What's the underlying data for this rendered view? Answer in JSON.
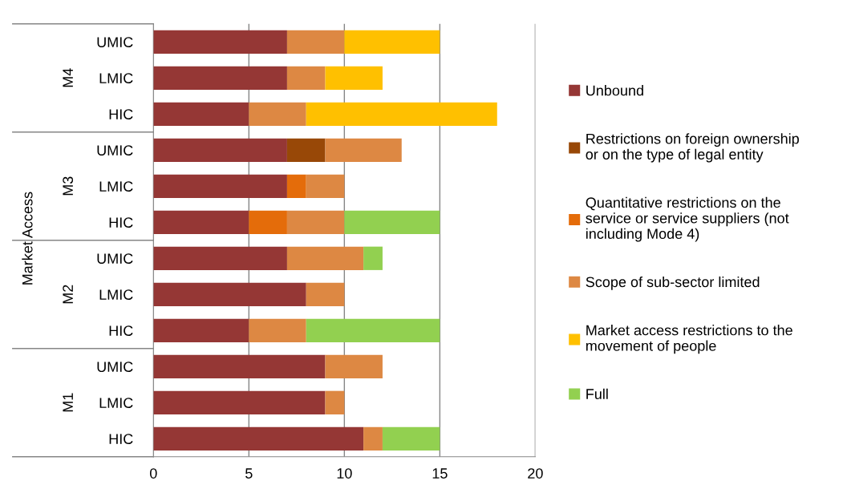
{
  "chart_data": {
    "type": "bar",
    "orientation": "horizontal",
    "stacked": true,
    "ylabel": "Market Access",
    "categories": [
      "UMIC",
      "LMIC",
      "HIC",
      "UMIC",
      "LMIC",
      "HIC",
      "UMIC",
      "LMIC",
      "HIC",
      "UMIC",
      "LMIC",
      "HIC"
    ],
    "annotations": [
      "M4",
      "M3",
      "M2",
      "M1"
    ],
    "series": [
      {
        "name": "Unbound",
        "color": "#953735",
        "values": [
          7,
          7,
          5,
          7,
          7,
          5,
          7,
          8,
          5,
          9,
          9,
          11
        ]
      },
      {
        "name": "Restrictions on foreign ownership or on the type of legal entity",
        "color": "#984807",
        "values": [
          null,
          null,
          null,
          2,
          null,
          null,
          null,
          null,
          null,
          null,
          null,
          null
        ]
      },
      {
        "name": "Quantitative restrictions on the service or service suppliers (not including Mode 4)",
        "color": "#e46c0a",
        "values": [
          null,
          null,
          null,
          null,
          1,
          2,
          null,
          null,
          null,
          null,
          null,
          null
        ]
      },
      {
        "name": "Scope of sub-sector limited",
        "color": "#dd8843",
        "values": [
          3,
          2,
          3,
          4,
          2,
          3,
          4,
          2,
          3,
          3,
          1,
          1
        ]
      },
      {
        "name": "Market access restrictions to the movement of people",
        "color": "#ffc000",
        "values": [
          5,
          3,
          10,
          null,
          null,
          null,
          null,
          null,
          null,
          null,
          null,
          null
        ]
      },
      {
        "name": "Full",
        "color": "#92d050",
        "values": [
          null,
          null,
          null,
          null,
          null,
          5,
          1,
          null,
          7,
          null,
          null,
          3
        ]
      }
    ],
    "xlim": [
      0,
      20
    ],
    "xticks": [
      0,
      5,
      10,
      15,
      20
    ],
    "grid": "x",
    "legend": "right"
  }
}
